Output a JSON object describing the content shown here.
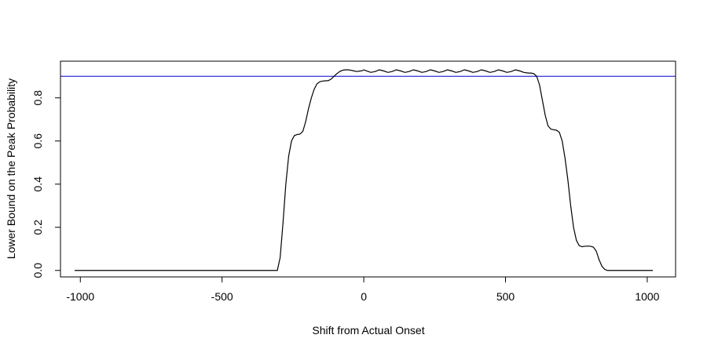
{
  "chart_data": {
    "type": "line",
    "title": "",
    "xlabel": "Shift from Actual Onset",
    "ylabel": "Lower Bound on the Peak Probability",
    "xlim": [
      -1070,
      1100
    ],
    "ylim": [
      -0.03,
      0.97
    ],
    "x_ticks": [
      -1000,
      -500,
      0,
      500,
      1000
    ],
    "y_ticks": [
      0.0,
      0.2,
      0.4,
      0.6,
      0.8
    ],
    "x_tick_labels": [
      "-1000",
      "-500",
      "0",
      "500",
      "1000"
    ],
    "y_tick_labels": [
      "0.0",
      "0.2",
      "0.4",
      "0.6",
      "0.8"
    ],
    "grid": false,
    "series": [
      {
        "color": "#000000",
        "x": [
          -1020,
          -305,
          -295,
          -285,
          -275,
          -265,
          -255,
          -245,
          -235,
          -225,
          -215,
          -205,
          -195,
          -185,
          -175,
          -165,
          -155,
          -145,
          -135,
          -125,
          -115,
          -105,
          -95,
          -85,
          -75,
          -65,
          -55,
          -45,
          -35,
          -25,
          -15,
          -5,
          0,
          10,
          25,
          40,
          55,
          70,
          85,
          100,
          115,
          130,
          145,
          160,
          175,
          190,
          205,
          220,
          235,
          250,
          265,
          280,
          295,
          310,
          325,
          340,
          355,
          370,
          385,
          400,
          415,
          430,
          445,
          460,
          475,
          490,
          505,
          520,
          535,
          550,
          565,
          580,
          590,
          600,
          610,
          620,
          630,
          640,
          650,
          660,
          670,
          680,
          690,
          700,
          710,
          720,
          730,
          740,
          750,
          760,
          770,
          780,
          790,
          800,
          810,
          820,
          830,
          840,
          850,
          860,
          870,
          1020
        ],
        "y": [
          0.0,
          0.0,
          0.06,
          0.22,
          0.4,
          0.53,
          0.6,
          0.625,
          0.63,
          0.632,
          0.645,
          0.69,
          0.75,
          0.8,
          0.84,
          0.865,
          0.875,
          0.878,
          0.879,
          0.88,
          0.887,
          0.9,
          0.912,
          0.922,
          0.928,
          0.93,
          0.93,
          0.928,
          0.925,
          0.922,
          0.924,
          0.926,
          0.93,
          0.925,
          0.918,
          0.922,
          0.93,
          0.925,
          0.918,
          0.922,
          0.93,
          0.925,
          0.918,
          0.922,
          0.93,
          0.925,
          0.918,
          0.922,
          0.93,
          0.925,
          0.918,
          0.922,
          0.93,
          0.925,
          0.918,
          0.922,
          0.93,
          0.925,
          0.918,
          0.922,
          0.93,
          0.925,
          0.918,
          0.922,
          0.93,
          0.925,
          0.918,
          0.922,
          0.93,
          0.925,
          0.918,
          0.915,
          0.915,
          0.912,
          0.9,
          0.86,
          0.79,
          0.72,
          0.67,
          0.655,
          0.652,
          0.65,
          0.64,
          0.6,
          0.52,
          0.42,
          0.3,
          0.2,
          0.14,
          0.115,
          0.11,
          0.112,
          0.113,
          0.112,
          0.108,
          0.09,
          0.05,
          0.02,
          0.005,
          0.0,
          0.0,
          0.0
        ]
      }
    ],
    "reference_line": {
      "orientation": "horizontal",
      "y": 0.9,
      "color": "#0000cd"
    }
  }
}
